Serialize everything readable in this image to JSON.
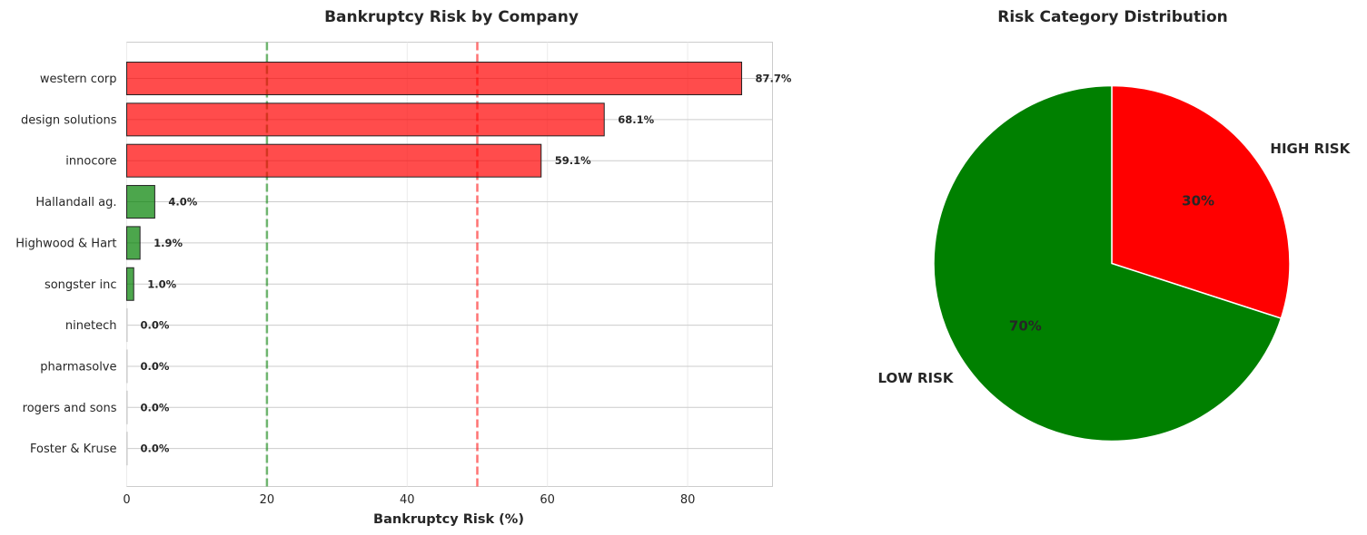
{
  "chart_data": [
    {
      "type": "bar",
      "orientation": "horizontal",
      "title": "Bankruptcy Risk by Company",
      "xlabel": "Bankruptcy Risk (%)",
      "ylabel": "",
      "xlim": [
        0,
        92.1
      ],
      "xticks": [
        0,
        20,
        40,
        60,
        80
      ],
      "xtick_labels": [
        "0",
        "20",
        "40",
        "60",
        "80"
      ],
      "grid": true,
      "categories": [
        "western corp",
        "design solutions",
        "innocore",
        "Hallandall ag.",
        "Highwood & Hart",
        "songster inc",
        "ninetech",
        "pharmasolve",
        "rogers and sons",
        "Foster & Kruse"
      ],
      "values": [
        87.7,
        68.1,
        59.1,
        4.0,
        1.9,
        1.0,
        0.0,
        0.0,
        0.0,
        0.0
      ],
      "value_labels": [
        "87.7%",
        "68.1%",
        "59.1%",
        "4.0%",
        "1.9%",
        "1.0%",
        "0.0%",
        "0.0%",
        "0.0%",
        "0.0%"
      ],
      "bar_colors": [
        "#ff0000",
        "#ff0000",
        "#ff0000",
        "#008000",
        "#008000",
        "#008000",
        "#008000",
        "#008000",
        "#008000",
        "#008000"
      ],
      "reference_lines": [
        {
          "x": 20,
          "color": "#008000",
          "style": "dashed"
        },
        {
          "x": 50,
          "color": "#ff0000",
          "style": "dashed"
        }
      ]
    },
    {
      "type": "pie",
      "title": "Risk Category Distribution",
      "labels": [
        "HIGH RISK",
        "LOW RISK"
      ],
      "values": [
        30,
        70
      ],
      "pct_labels": [
        "30%",
        "70%"
      ],
      "colors": [
        "#ff0000",
        "#008000"
      ],
      "start_angle_deg": 90,
      "direction": "clockwise"
    }
  ]
}
